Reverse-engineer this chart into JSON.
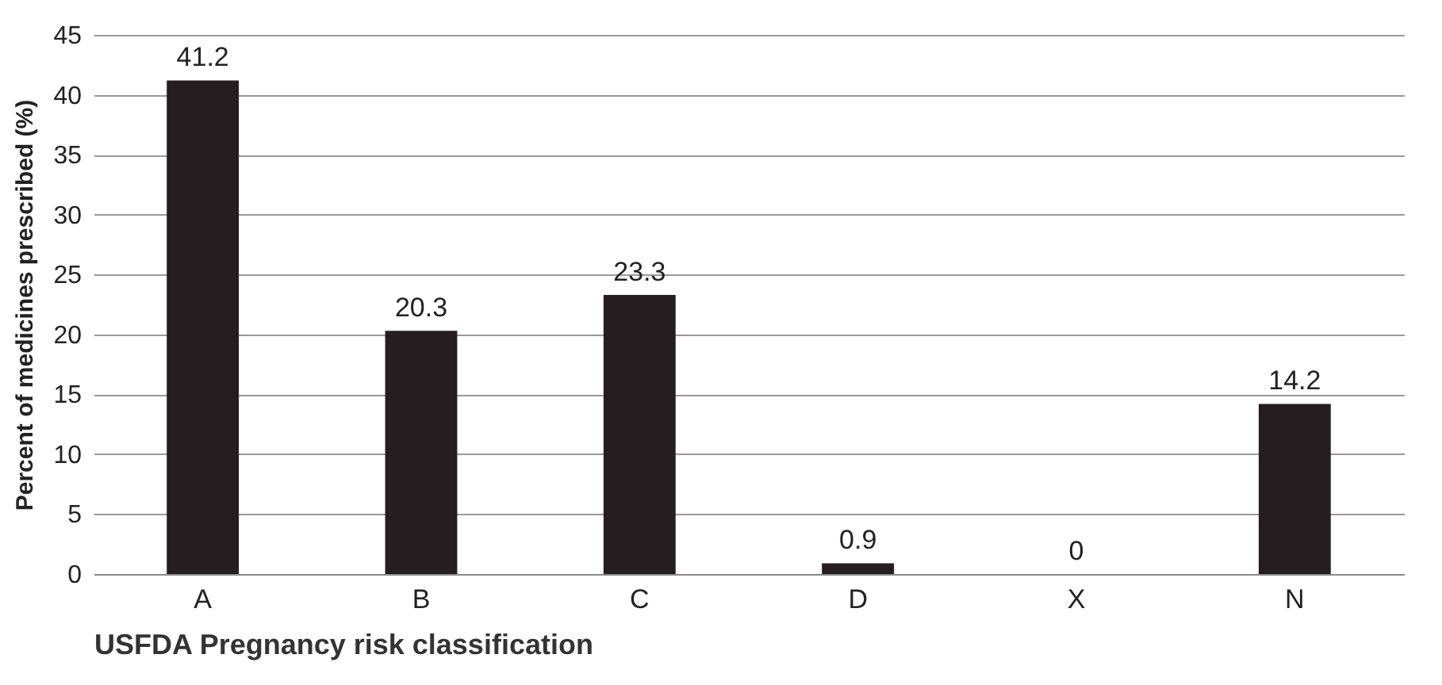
{
  "chart_data": {
    "type": "bar",
    "xlabel": "USFDA Pregnancy risk classification",
    "ylabel": "Percent of medicines prescribed (%)",
    "categories": [
      "A",
      "B",
      "C",
      "D",
      "X",
      "N"
    ],
    "values": [
      41.2,
      20.3,
      23.3,
      0.9,
      0,
      14.2
    ],
    "color": "#231f20",
    "ylim": [
      0,
      45
    ],
    "yticks": [
      0,
      5,
      10,
      15,
      20,
      25,
      30,
      35,
      40,
      45
    ],
    "grid": "y",
    "data_labels": true
  }
}
